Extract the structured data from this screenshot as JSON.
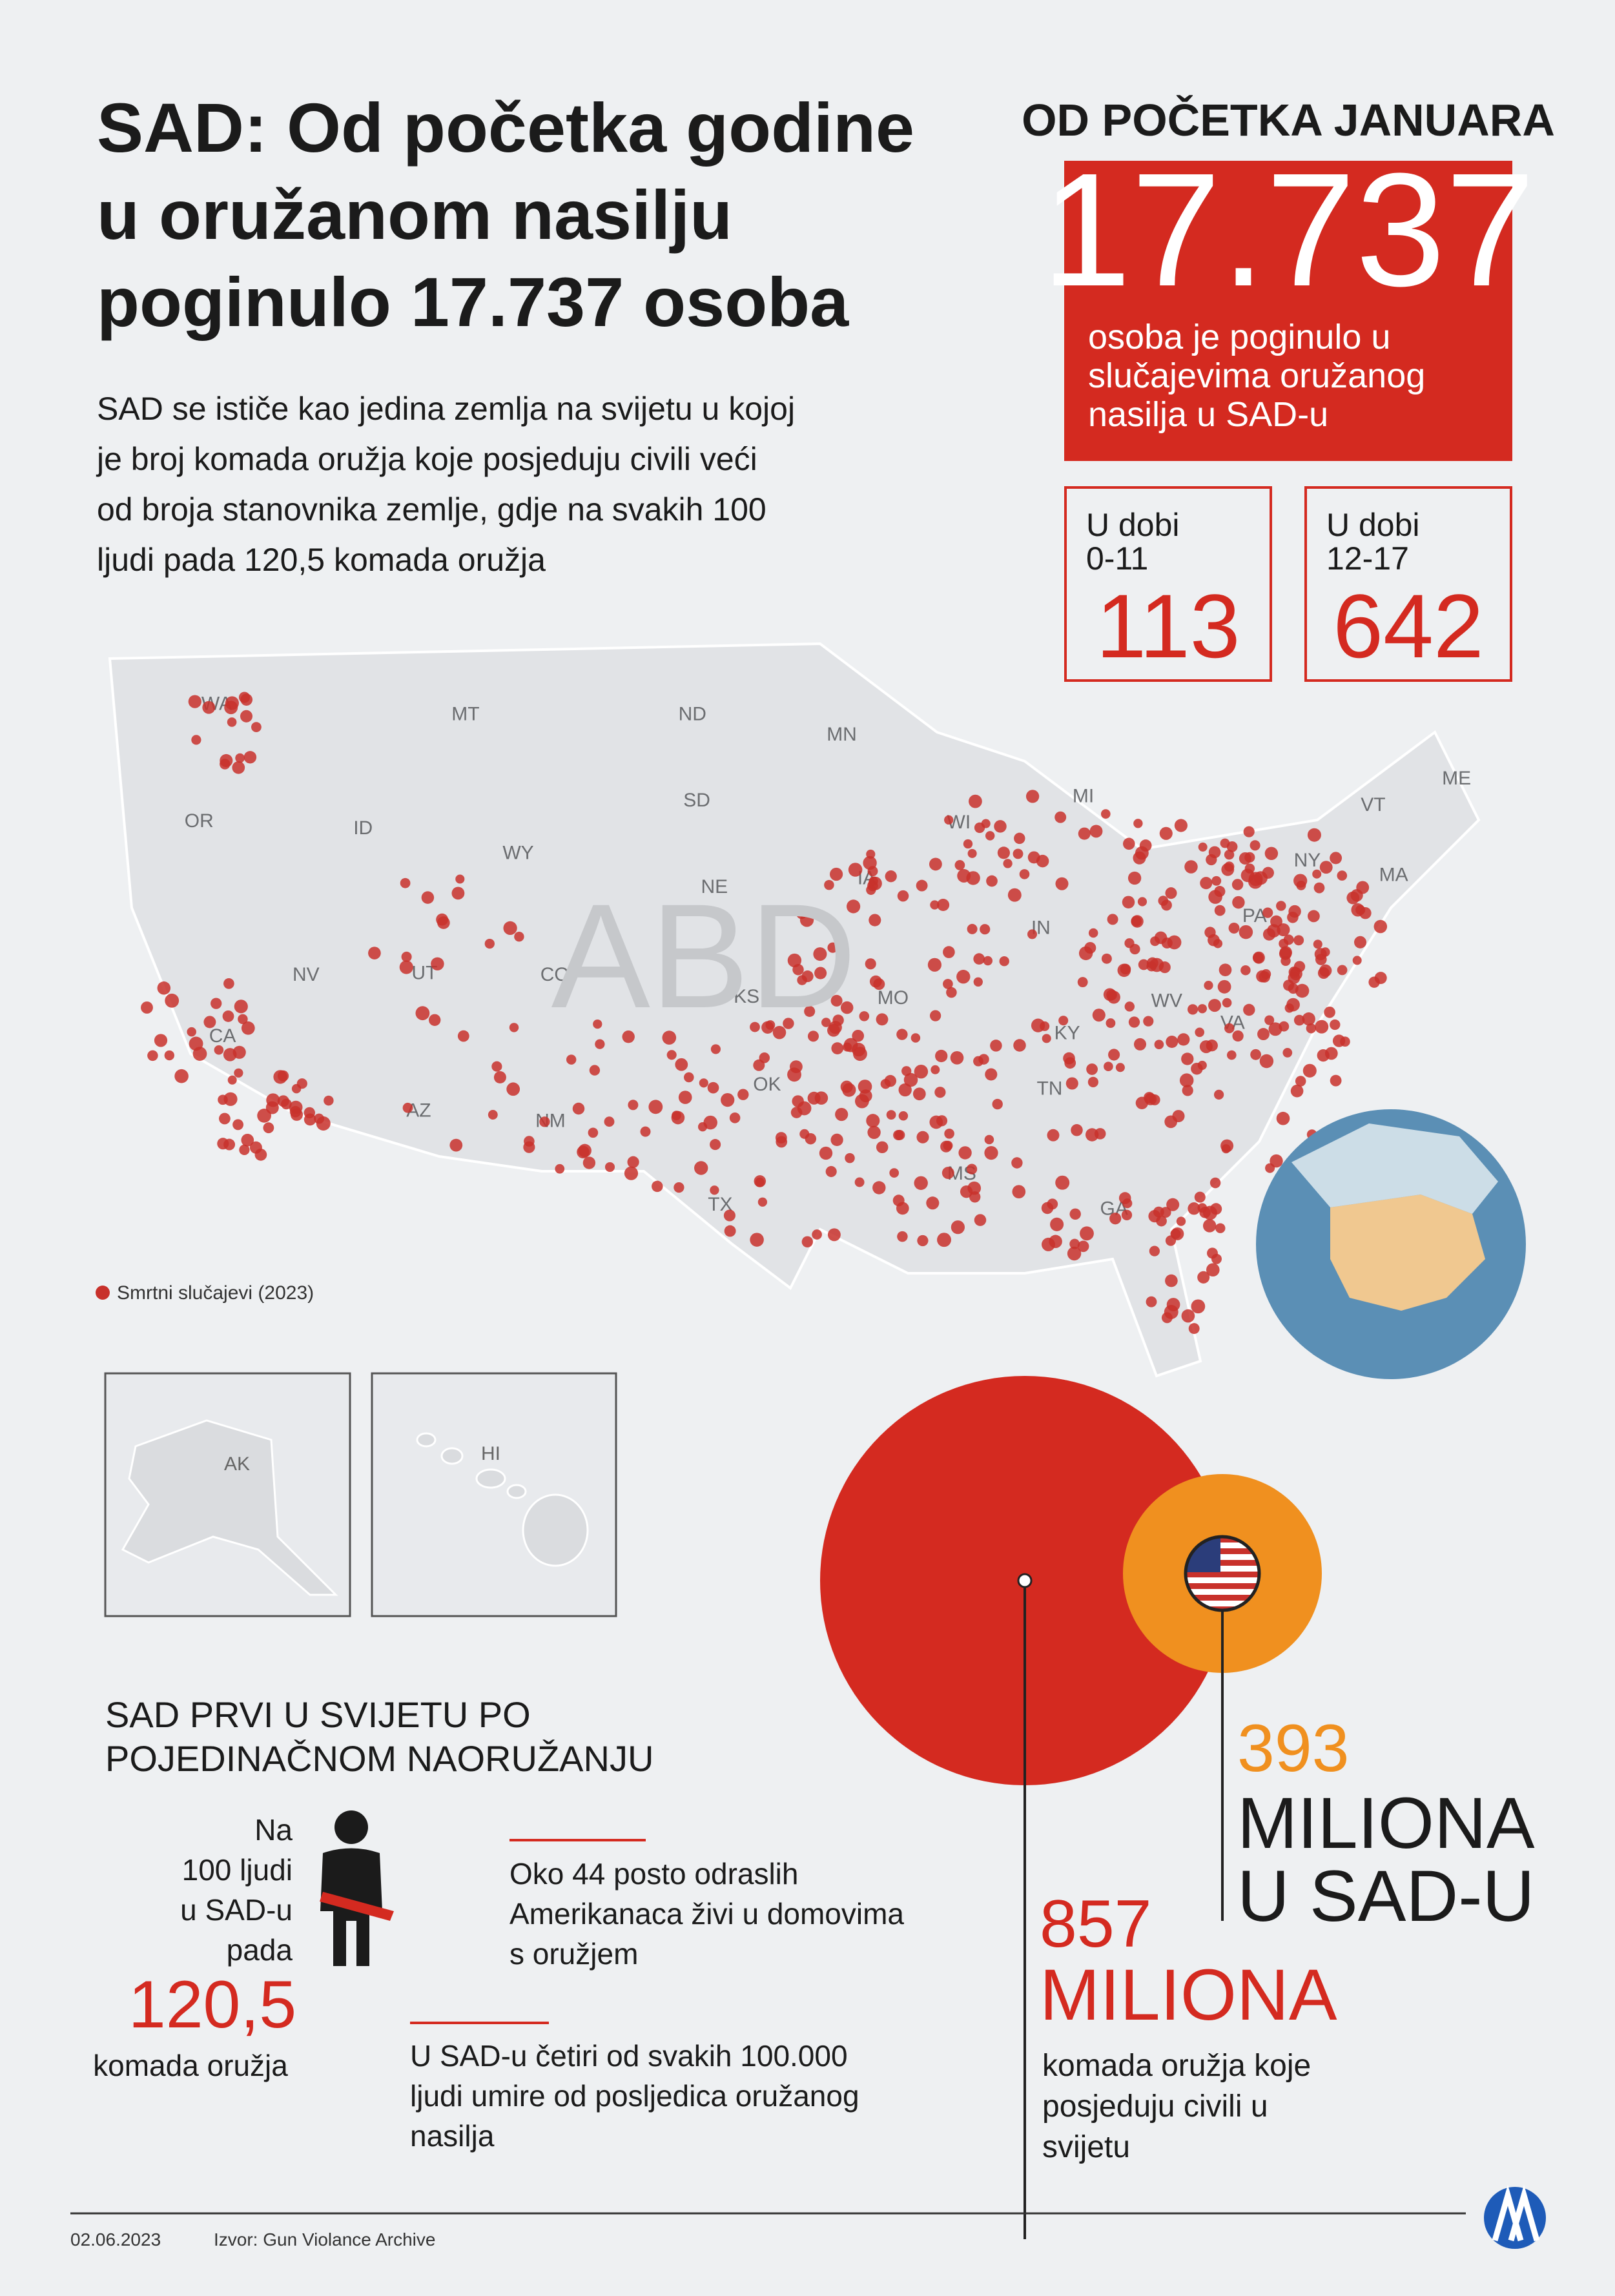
{
  "header": {
    "title_lines": [
      "SAD: Od početka godine",
      "u oružanom nasilju",
      "poginulo 17.737 osoba"
    ],
    "description_lines": [
      "SAD se ističe kao jedina zemlja na svijetu u kojoj",
      "je broj komada oružja koje posjeduju civili veći",
      "od broja stanovnika zemlje, gdje na svakih 100",
      "ljudi pada 120,5 komada oružja"
    ]
  },
  "stats": {
    "heading": "OD POČETKA JANUARA",
    "total": "17.737",
    "total_caption_lines": [
      "osoba je poginulo u",
      "slučajevima oružanog",
      "nasilja u SAD-u"
    ],
    "age_groups": [
      {
        "label_lines": [
          "U dobi",
          "0-11"
        ],
        "value": 113
      },
      {
        "label_lines": [
          "U dobi",
          "12-17"
        ],
        "value": 642
      }
    ]
  },
  "map": {
    "country_label": "ABD",
    "state_labels": [
      "WA",
      "MT",
      "ND",
      "MN",
      "OR",
      "ID",
      "SD",
      "WY",
      "NE",
      "IA",
      "WI",
      "MI",
      "NV",
      "UT",
      "CO",
      "KS",
      "MO",
      "IN",
      "PA",
      "NY",
      "VT",
      "ME",
      "MA",
      "WV",
      "VA",
      "KY",
      "TN",
      "CA",
      "AZ",
      "NM",
      "TX",
      "OK",
      "MS",
      "GA"
    ],
    "legend": "Smrtni slučajevi (2023)",
    "insets": [
      "AK",
      "HI"
    ]
  },
  "comparison": {
    "world": {
      "value": 857,
      "unit": "MILIONA",
      "caption_lines": [
        "komada oružja koje",
        "posjeduju civili u",
        "svijetu"
      ]
    },
    "usa": {
      "value": 393,
      "unit_lines": [
        "MILIONA",
        "U SAD-U"
      ]
    }
  },
  "ownership": {
    "heading_lines": [
      "SAD PRVI U SVIJETU PO",
      "POJEDINAČNOM NAORUŽANJU"
    ],
    "per100_lines": [
      "Na",
      "100 ljudi",
      "u SAD-u",
      "pada"
    ],
    "per100_value": "120,5",
    "per100_unit": "komada oružja",
    "facts": [
      [
        "Oko 44 posto odraslih",
        "Amerikanaca živi u domovima",
        "s oružjem"
      ],
      [
        "U SAD-u četiri od svakih 100.000",
        "ljudi umire od posljedica oružanog",
        "nasilja"
      ]
    ]
  },
  "footer": {
    "date": "02.06.2023",
    "source": "Izvor: Gun Violance Archive"
  }
}
